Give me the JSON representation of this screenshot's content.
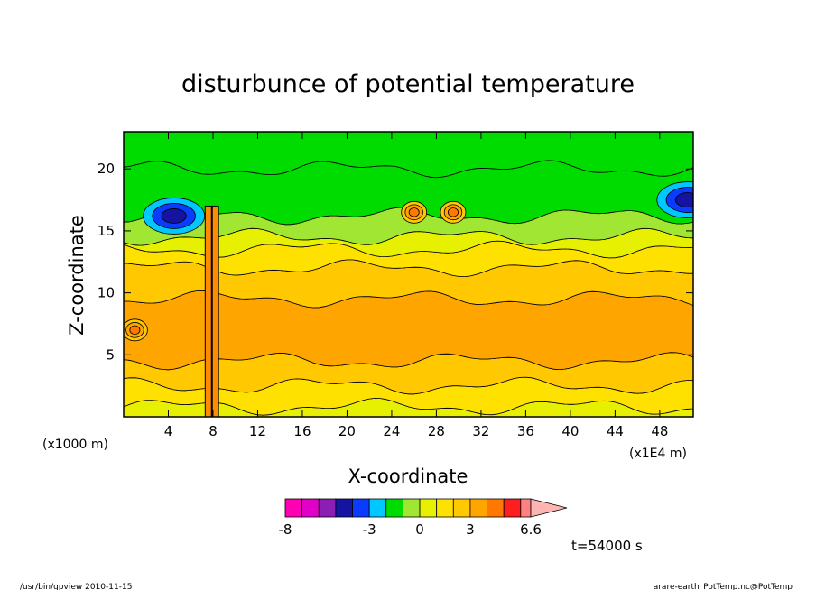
{
  "chart_data": {
    "type": "heatmap",
    "title": "disturbunce of potential temperature",
    "xlabel": "X-coordinate",
    "ylabel": "Z-coordinate",
    "x_unit": "(x1000 m)",
    "x_scale_note": "(x1E4 m)",
    "xlim": [
      0,
      51
    ],
    "ylim": [
      0,
      23
    ],
    "x_ticks": [
      4,
      8,
      12,
      16,
      20,
      24,
      28,
      32,
      36,
      40,
      44,
      48
    ],
    "y_ticks": [
      5,
      10,
      15,
      20
    ],
    "colorbar": {
      "levels": [
        -8,
        -7,
        -6,
        -5,
        -4,
        -3,
        -2,
        -1,
        0,
        1,
        2,
        3,
        4,
        5,
        6,
        6.6
      ],
      "tick_labels": [
        "-8",
        "-3",
        "0",
        "3",
        "6.6"
      ],
      "colors": [
        "#ff00b4",
        "#e000c8",
        "#8c1eb4",
        "#1414a0",
        "#0a3cff",
        "#00c8ff",
        "#00dc00",
        "#a0e632",
        "#e6f000",
        "#ffe100",
        "#ffc800",
        "#ffa500",
        "#ff7800",
        "#ff1e1e",
        "#ff8080",
        "#ffb4b4"
      ]
    },
    "bands": [
      {
        "from": 0,
        "to": 0.8,
        "color": "#e6f000"
      },
      {
        "from": 0.8,
        "to": 2.5,
        "color": "#ffe100"
      },
      {
        "from": 2.5,
        "to": 4.5,
        "color": "#ffc800"
      },
      {
        "from": 4.5,
        "to": 9.5,
        "color": "#ffa500"
      },
      {
        "from": 9.5,
        "to": 12.0,
        "color": "#ffc800"
      },
      {
        "from": 12.0,
        "to": 13.5,
        "color": "#ffe100"
      },
      {
        "from": 13.5,
        "to": 14.5,
        "color": "#e6f000"
      },
      {
        "from": 14.5,
        "to": 16.2,
        "color": "#a0e632"
      },
      {
        "from": 16.2,
        "to": 20.0,
        "color": "#00dc00"
      },
      {
        "from": 20.0,
        "to": 23.0,
        "color": "#00dc00"
      }
    ],
    "features": [
      {
        "kind": "cold-core",
        "x": 4.5,
        "z": 16.2,
        "value": -5
      },
      {
        "kind": "cold-core",
        "x": 50.5,
        "z": 17.5,
        "value": -4
      },
      {
        "kind": "warm-core",
        "x": 1.0,
        "z": 7.0,
        "value": 4
      },
      {
        "kind": "warm-core",
        "x": 26.0,
        "z": 16.5,
        "value": 3
      },
      {
        "kind": "warm-core",
        "x": 29.5,
        "z": 16.5,
        "value": 3
      },
      {
        "kind": "updraft-column",
        "x": 7.9,
        "z_top": 17.0
      }
    ]
  },
  "time_label": "t=54000 s",
  "footer": {
    "left": "/usr/bin/gpview  2010-11-15",
    "right": "arare-earth_PotTemp.nc@PotTemp"
  }
}
